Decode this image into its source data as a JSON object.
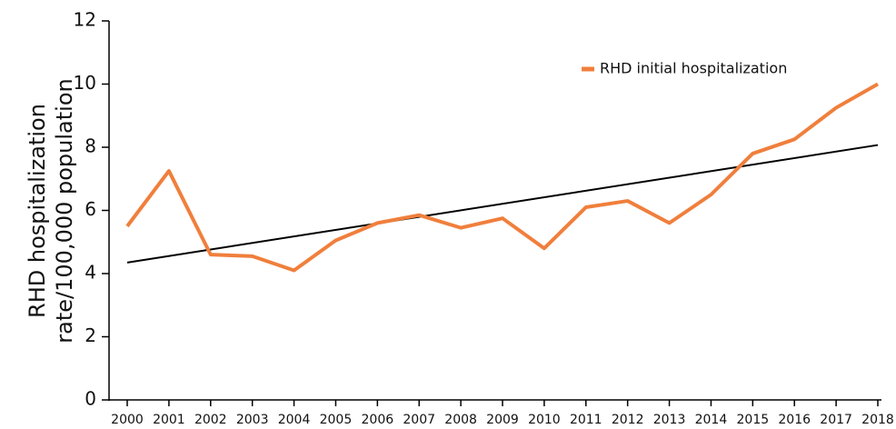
{
  "chart_data": {
    "type": "line",
    "y_label": [
      "RHD hospitalization",
      "rate/100,000 population"
    ],
    "categories": [
      "2000",
      "2001",
      "2002",
      "2003",
      "2004",
      "2005",
      "2006",
      "2007",
      "2008",
      "2009",
      "2010",
      "2011",
      "2012",
      "2013",
      "2014",
      "2015",
      "2016",
      "2017",
      "2018"
    ],
    "series": [
      {
        "name": "RHD initial hospitalization",
        "color": "#f07f3c",
        "values": [
          5.5,
          7.25,
          4.6,
          4.55,
          4.1,
          5.05,
          5.6,
          5.85,
          5.45,
          5.75,
          4.8,
          6.1,
          6.3,
          5.6,
          6.5,
          7.8,
          8.25,
          9.25,
          10.0
        ]
      }
    ],
    "trendline": {
      "color": "#000000",
      "values": [
        4.35,
        8.07
      ]
    },
    "ylim": [
      0,
      12
    ],
    "yticks": [
      0,
      2,
      4,
      6,
      8,
      10,
      12
    ]
  }
}
